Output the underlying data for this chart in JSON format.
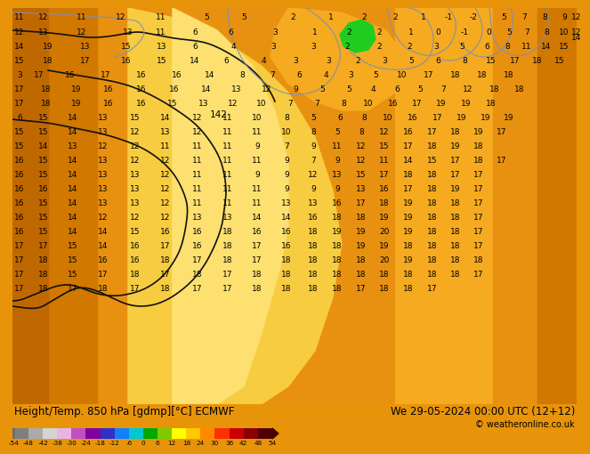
{
  "title_left": "Height/Temp. 850 hPa [gdmp][°C] ECMWF",
  "title_right": "We 29-05-2024 00:00 UTC (12+12)",
  "copyright": "© weatheronline.co.uk",
  "colorbar_values": [
    -54,
    -48,
    -42,
    -38,
    -30,
    -24,
    -18,
    -12,
    -6,
    0,
    6,
    12,
    18,
    24,
    30,
    36,
    42,
    48,
    54
  ],
  "colorbar_colors": [
    "#7f7f7f",
    "#aaaaaa",
    "#d4d4d4",
    "#e8b4e8",
    "#c050c0",
    "#8000a0",
    "#3030c8",
    "#1080ff",
    "#00c8d0",
    "#00a800",
    "#80c800",
    "#ffff00",
    "#ffc800",
    "#ff8800",
    "#ff3000",
    "#c80000",
    "#880000",
    "#500000"
  ],
  "bg_color": "#e8940a",
  "bottom_bar_color": "#e8940a",
  "label_color": "#000000",
  "title_fontsize": 8.5,
  "copyright_fontsize": 7.0,
  "number_fontsize": 6.5,
  "cbar_label_fontsize": 5.2,
  "map_colors": {
    "orange_dark": "#d07800",
    "orange_mid": "#e89010",
    "orange_light": "#f5aa20",
    "yellow_light": "#f8cc40",
    "yellow_pale": "#fde070",
    "green_bright": "#20cc20"
  },
  "contour_color_black": "#111111",
  "contour_color_blue": "#8090b0"
}
